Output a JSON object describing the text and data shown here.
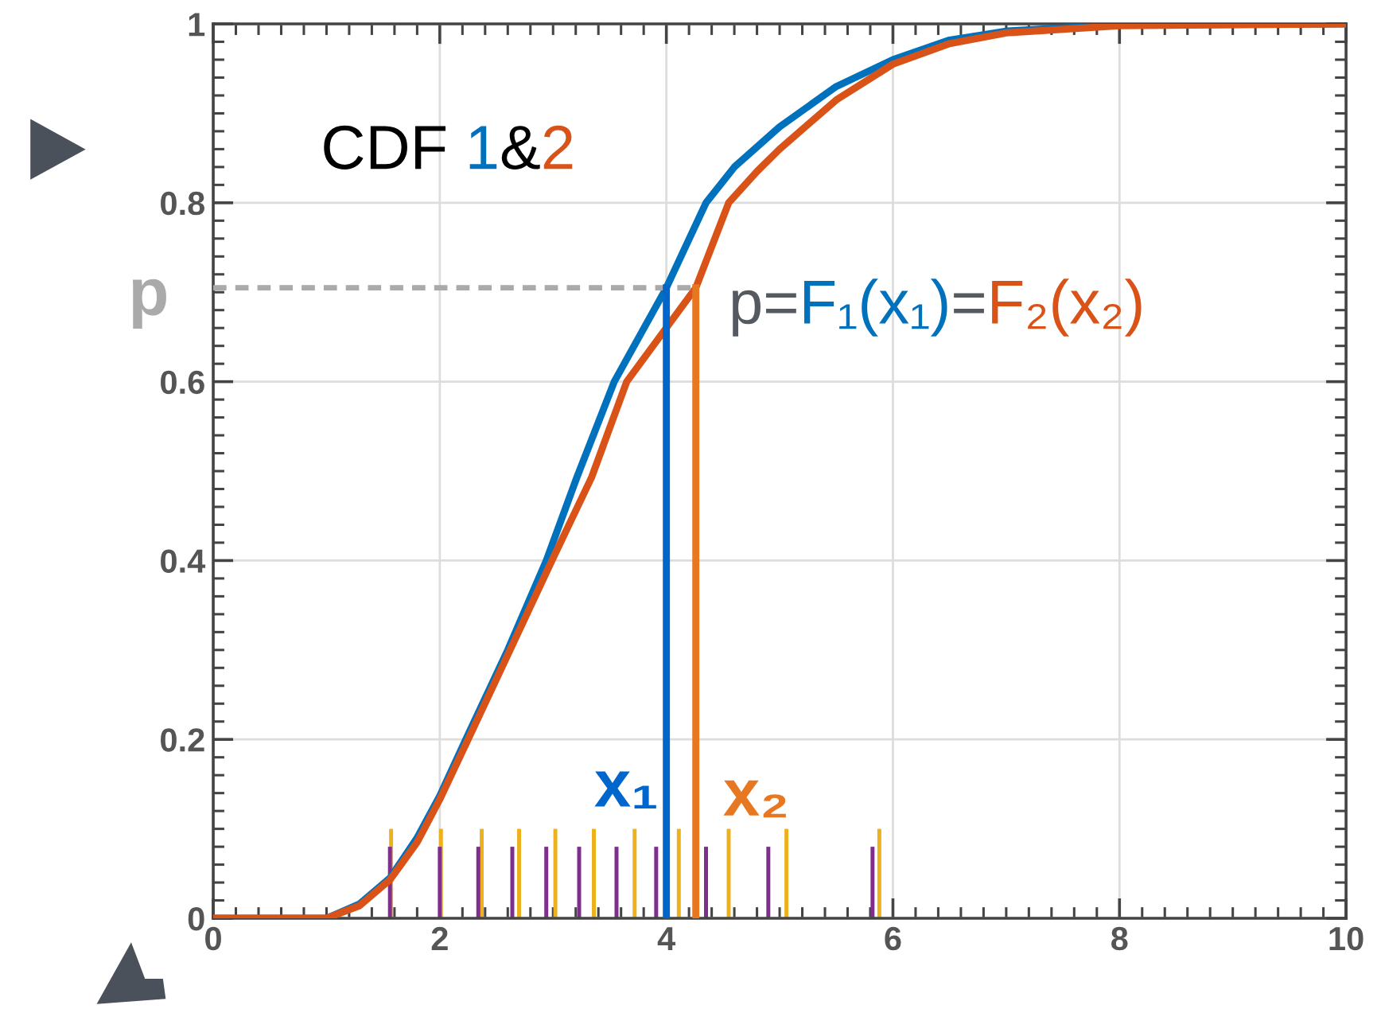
{
  "chart_data": {
    "type": "line",
    "xlim": [
      0,
      10
    ],
    "ylim": [
      0,
      1
    ],
    "xticks": [
      0,
      2,
      4,
      6,
      8,
      10
    ],
    "yticks": [
      0,
      0.2,
      0.4,
      0.6,
      0.8,
      1
    ],
    "grid": true,
    "marker": "none",
    "series": [
      {
        "type": "bar",
        "color": "#edb120",
        "x": [
          1.57,
          2.01,
          2.37,
          2.7,
          3.02,
          3.36,
          3.72,
          4.11,
          4.55,
          5.06,
          5.88
        ],
        "values": [
          0.1,
          0.1,
          0.1,
          0.1,
          0.1,
          0.1,
          0.1,
          0.1,
          0.1,
          0.1,
          0.1
        ]
      },
      {
        "type": "bar",
        "color": "#7e2f8e",
        "x": [
          1.56,
          2.0,
          2.34,
          2.64,
          2.94,
          3.23,
          3.56,
          3.91,
          4.35,
          4.9,
          5.82
        ],
        "values": [
          0.08,
          0.08,
          0.08,
          0.08,
          0.08,
          0.08,
          0.08,
          0.08,
          0.08,
          0.08,
          0.08
        ]
      },
      {
        "color": "#0072bd",
        "x": [
          0,
          1.0,
          1.29,
          1.56,
          1.8,
          2.0,
          2.23,
          2.6,
          2.94,
          3.21,
          3.54,
          4.0,
          4.35,
          4.6,
          5.0,
          5.5,
          6.0,
          6.5,
          7.0,
          8.0,
          10.0
        ],
        "values": [
          0,
          0,
          0.016,
          0.045,
          0.09,
          0.137,
          0.2,
          0.3,
          0.4,
          0.493,
          0.6,
          0.705,
          0.8,
          0.84,
          0.885,
          0.93,
          0.96,
          0.982,
          0.992,
          0.999,
          1
        ]
      },
      {
        "color": "#d95319",
        "x": [
          0,
          1.0,
          1.29,
          1.56,
          1.8,
          2.0,
          2.25,
          2.62,
          2.99,
          3.34,
          3.65,
          4.26,
          4.55,
          4.8,
          5.0,
          5.5,
          6.0,
          6.5,
          7.0,
          8.0,
          10.0
        ],
        "values": [
          0,
          0,
          0.014,
          0.043,
          0.085,
          0.133,
          0.2,
          0.3,
          0.4,
          0.493,
          0.6,
          0.705,
          0.8,
          0.835,
          0.86,
          0.915,
          0.955,
          0.978,
          0.99,
          0.998,
          1
        ]
      },
      {
        "color": "#aaaaaa",
        "line_style": "dashed",
        "x": [
          0,
          4.26
        ],
        "values": [
          0.705,
          0.705
        ]
      },
      {
        "color": "#0066cc",
        "x": [
          4.0,
          4.0
        ],
        "values": [
          0,
          0.705
        ]
      },
      {
        "color": "#e87722",
        "x": [
          4.26,
          4.26
        ],
        "values": [
          0,
          0.705
        ]
      }
    ],
    "annotations": [
      "CDF ",
      "1",
      "&",
      "2",
      "p=",
      "F₁(x₁)",
      "=",
      "F₂(x₂)",
      "x₁",
      "x₂",
      "p"
    ]
  }
}
